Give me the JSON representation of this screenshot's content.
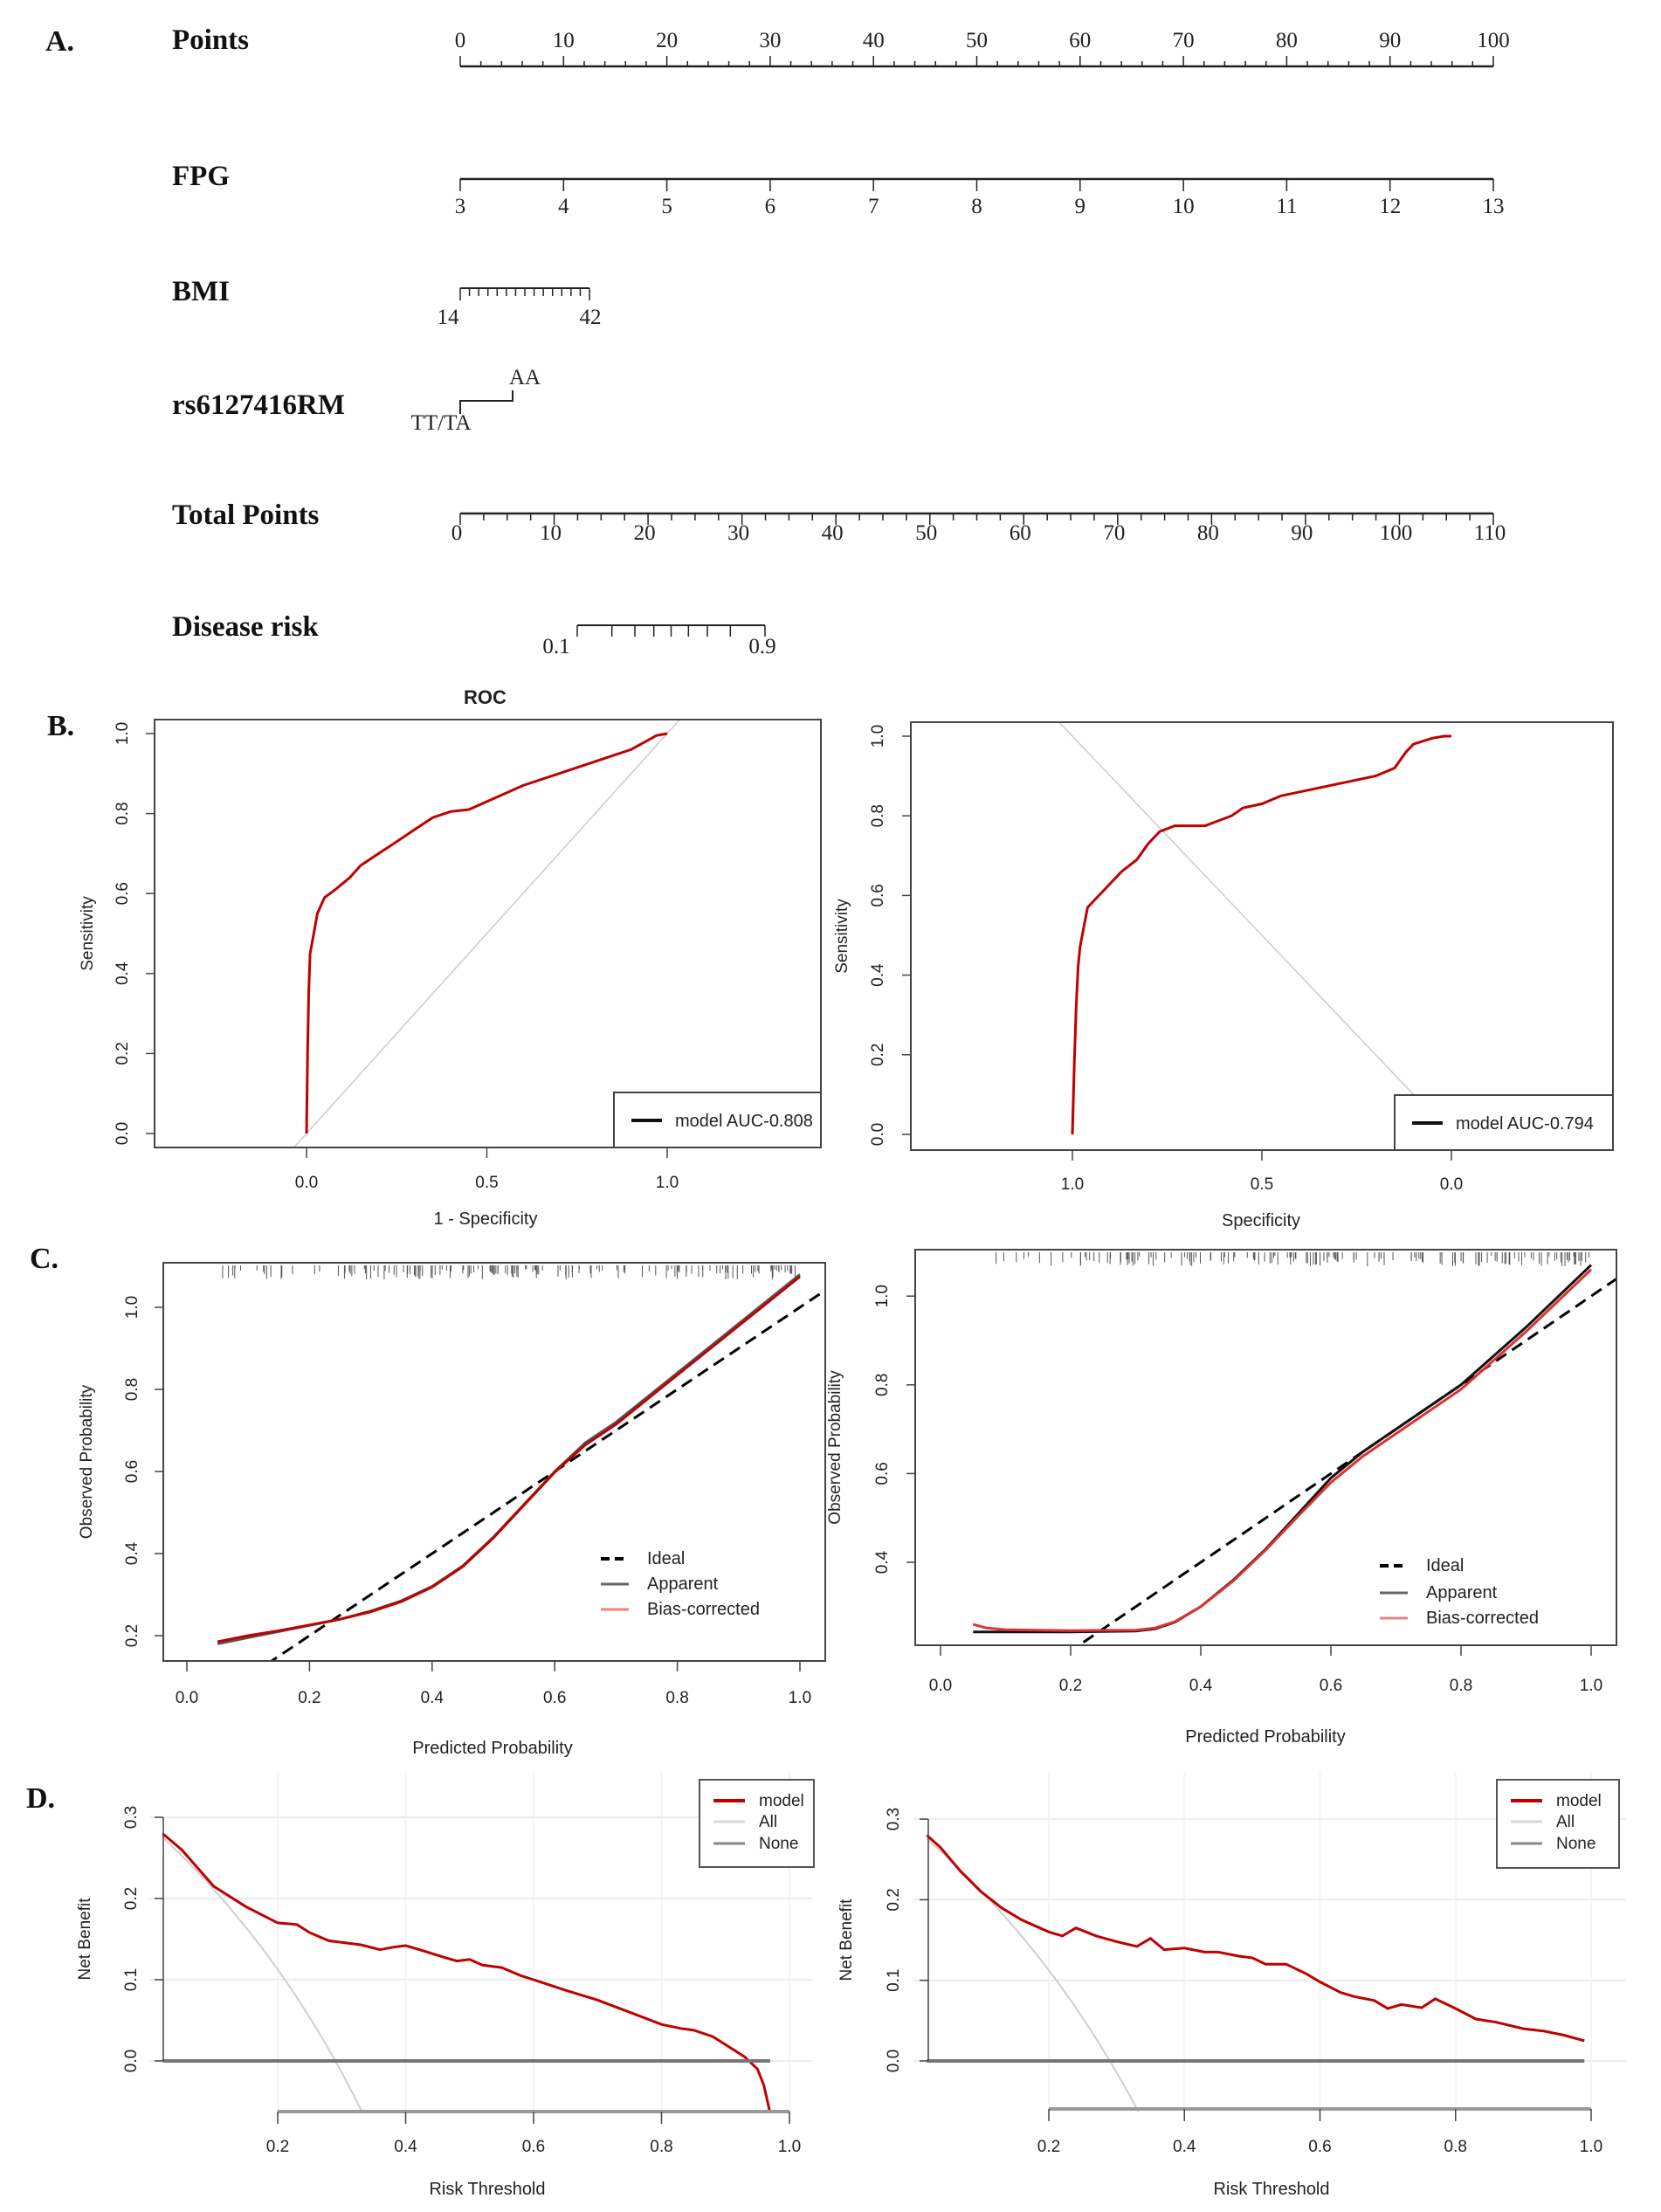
{
  "panel_labels": {
    "a": "A.",
    "b": "B.",
    "c": "C.",
    "d": "D."
  },
  "nomogram": {
    "rows": [
      {
        "label": "Points",
        "ticks": [
          0,
          10,
          20,
          30,
          40,
          50,
          60,
          70,
          80,
          90,
          100
        ]
      },
      {
        "label": "FPG",
        "ticks": [
          3,
          4,
          5,
          6,
          7,
          8,
          9,
          10,
          11,
          12,
          13
        ]
      },
      {
        "label": "BMI",
        "ticks": [
          "14",
          "42"
        ]
      },
      {
        "label": "rs6127416RM",
        "levels": [
          "TT/TA",
          "AA"
        ]
      },
      {
        "label": "Total Points",
        "ticks": [
          0,
          10,
          20,
          30,
          40,
          50,
          60,
          70,
          80,
          90,
          100,
          110
        ]
      },
      {
        "label": "Disease risk",
        "ticks": [
          "0.1",
          "0.9"
        ]
      }
    ]
  },
  "chart_data": [
    {
      "id": "roc_left",
      "type": "line",
      "title": "ROC",
      "xlabel": "1 - Specificity",
      "ylabel": "Sensitivity",
      "xticks": [
        "0.0",
        "0.5",
        "1.0"
      ],
      "yticks": [
        "0.0",
        "0.2",
        "0.4",
        "0.6",
        "0.8",
        "1.0"
      ],
      "xlim": [
        -0.42,
        1.42
      ],
      "ylim": [
        -0.04,
        1.03
      ],
      "legend": {
        "position": "bottom-right",
        "entries": [
          "model AUC-0.808"
        ]
      },
      "series": [
        {
          "name": "model",
          "color": "#c00000",
          "x": [
            0,
            0.003,
            0.006,
            0.01,
            0.02,
            0.03,
            0.05,
            0.08,
            0.12,
            0.15,
            0.2,
            0.25,
            0.3,
            0.35,
            0.4,
            0.45,
            0.5,
            0.55,
            0.6,
            0.7,
            0.8,
            0.9,
            0.97,
            1.0
          ],
          "y": [
            0,
            0.2,
            0.35,
            0.45,
            0.5,
            0.55,
            0.59,
            0.61,
            0.64,
            0.67,
            0.7,
            0.73,
            0.76,
            0.79,
            0.805,
            0.81,
            0.83,
            0.85,
            0.87,
            0.9,
            0.93,
            0.96,
            0.995,
            1.0
          ]
        }
      ],
      "reference": {
        "name": "chance",
        "color": "#cccccc"
      }
    },
    {
      "id": "roc_right",
      "type": "line",
      "title": "",
      "xlabel": "Specificity",
      "ylabel": "Sensitivity",
      "xticks": [
        "1.0",
        "0.5",
        "0.0"
      ],
      "yticks": [
        "0.0",
        "0.2",
        "0.4",
        "0.6",
        "0.8",
        "1.0"
      ],
      "xlim": [
        1.42,
        -0.43
      ],
      "ylim": [
        -0.04,
        1.03
      ],
      "legend": {
        "position": "bottom-right",
        "entries": [
          "model AUC-0.794"
        ]
      },
      "series": [
        {
          "name": "model",
          "color": "#c00000",
          "x": [
            1.0,
            0.995,
            0.99,
            0.985,
            0.98,
            0.97,
            0.96,
            0.93,
            0.9,
            0.87,
            0.83,
            0.8,
            0.77,
            0.73,
            0.65,
            0.58,
            0.55,
            0.5,
            0.45,
            0.4,
            0.3,
            0.2,
            0.15,
            0.12,
            0.1,
            0.05,
            0.02,
            0.0
          ],
          "y": [
            0,
            0.18,
            0.32,
            0.42,
            0.47,
            0.52,
            0.57,
            0.6,
            0.63,
            0.66,
            0.69,
            0.73,
            0.76,
            0.775,
            0.775,
            0.8,
            0.82,
            0.83,
            0.85,
            0.86,
            0.88,
            0.9,
            0.92,
            0.96,
            0.98,
            0.995,
            1.0,
            1.0
          ]
        }
      ],
      "reference": {
        "name": "chance",
        "color": "#cccccc"
      }
    },
    {
      "id": "calibration_left",
      "type": "line",
      "xlabel": "Predicted Probability",
      "ylabel": "Observed Probability",
      "xticks": [
        "0.0",
        "0.2",
        "0.4",
        "0.6",
        "0.8",
        "1.0"
      ],
      "yticks": [
        "0.2",
        "0.4",
        "0.6",
        "0.8",
        "1.0"
      ],
      "xlim": [
        -0.04,
        1.04
      ],
      "ylim": [
        0.14,
        1.11
      ],
      "legend": {
        "position": "bottom-right",
        "entries": [
          "Ideal",
          "Apparent",
          "Bias-corrected"
        ]
      },
      "series": [
        {
          "name": "Ideal",
          "color": "#000000",
          "style": "dashed",
          "x": [
            0,
            1.05
          ],
          "y": [
            0,
            1.05
          ]
        },
        {
          "name": "Apparent",
          "color": "#555555",
          "style": "solid",
          "x": [
            0.05,
            0.1,
            0.15,
            0.2,
            0.25,
            0.3,
            0.35,
            0.4,
            0.45,
            0.5,
            0.55,
            0.6,
            0.65,
            0.7,
            0.8,
            0.9,
            1.0
          ],
          "y": [
            0.18,
            0.195,
            0.21,
            0.225,
            0.24,
            0.26,
            0.285,
            0.32,
            0.37,
            0.44,
            0.52,
            0.6,
            0.67,
            0.72,
            0.84,
            0.96,
            1.08
          ]
        },
        {
          "name": "Bias-corrected",
          "color": "#c00000",
          "style": "solid",
          "x": [
            0.05,
            0.1,
            0.15,
            0.2,
            0.25,
            0.3,
            0.35,
            0.4,
            0.45,
            0.5,
            0.55,
            0.6,
            0.65,
            0.7,
            0.8,
            0.9,
            1.0
          ],
          "y": [
            0.185,
            0.2,
            0.212,
            0.226,
            0.24,
            0.258,
            0.283,
            0.318,
            0.368,
            0.438,
            0.518,
            0.598,
            0.665,
            0.715,
            0.835,
            0.955,
            1.075
          ]
        }
      ],
      "rug": true
    },
    {
      "id": "calibration_right",
      "type": "line",
      "xlabel": "Predicted Probability",
      "ylabel": "Observed Probability",
      "xticks": [
        "0.0",
        "0.2",
        "0.4",
        "0.6",
        "0.8",
        "1.0"
      ],
      "yticks": [
        "0.4",
        "0.6",
        "0.8",
        "1.0"
      ],
      "xlim": [
        -0.04,
        1.04
      ],
      "ylim": [
        0.215,
        1.11
      ],
      "legend": {
        "position": "bottom-right",
        "entries": [
          "Ideal",
          "Apparent",
          "Bias-corrected"
        ]
      },
      "series": [
        {
          "name": "Ideal",
          "color": "#000000",
          "style": "dashed",
          "x": [
            0,
            1.05
          ],
          "y": [
            0,
            1.05
          ]
        },
        {
          "name": "Apparent",
          "color": "#111111",
          "style": "solid",
          "x": [
            0.05,
            0.1,
            0.2,
            0.3,
            0.33,
            0.36,
            0.4,
            0.45,
            0.5,
            0.55,
            0.6,
            0.65,
            0.7,
            0.8,
            0.9,
            1.0
          ],
          "y": [
            0.243,
            0.243,
            0.243,
            0.245,
            0.25,
            0.265,
            0.3,
            0.36,
            0.43,
            0.51,
            0.59,
            0.65,
            0.7,
            0.8,
            0.93,
            1.07
          ]
        },
        {
          "name": "Bias-corrected",
          "color": "#e03030",
          "style": "solid",
          "x": [
            0.05,
            0.07,
            0.1,
            0.2,
            0.3,
            0.33,
            0.36,
            0.4,
            0.45,
            0.5,
            0.55,
            0.6,
            0.65,
            0.7,
            0.8,
            0.9,
            1.0
          ],
          "y": [
            0.26,
            0.252,
            0.248,
            0.246,
            0.247,
            0.252,
            0.266,
            0.3,
            0.358,
            0.428,
            0.505,
            0.58,
            0.64,
            0.69,
            0.79,
            0.92,
            1.06
          ]
        }
      ],
      "rug": true
    },
    {
      "id": "dca_left",
      "type": "line",
      "xlabel": "Risk Threshold",
      "ylabel": "Net Benefit",
      "xticks": [
        "0.2",
        "0.4",
        "0.6",
        "0.8",
        "1.0"
      ],
      "yticks": [
        "0.0",
        "0.1",
        "0.2",
        "0.3"
      ],
      "xlim": [
        0,
        1.03
      ],
      "ylim": [
        -0.065,
        0.33
      ],
      "legend": {
        "position": "top-right",
        "entries": [
          "model",
          "All",
          "None"
        ]
      },
      "prevalence": 0.29,
      "series": [
        {
          "name": "model",
          "color": "#c00000",
          "x": [
            0.02,
            0.05,
            0.1,
            0.15,
            0.2,
            0.23,
            0.25,
            0.28,
            0.3,
            0.33,
            0.36,
            0.38,
            0.4,
            0.43,
            0.45,
            0.48,
            0.5,
            0.52,
            0.55,
            0.58,
            0.6,
            0.65,
            0.7,
            0.75,
            0.8,
            0.83,
            0.85,
            0.88,
            0.9,
            0.93,
            0.95,
            0.96,
            0.97
          ],
          "y": [
            0.28,
            0.26,
            0.215,
            0.19,
            0.17,
            0.168,
            0.158,
            0.148,
            0.146,
            0.143,
            0.137,
            0.14,
            0.142,
            0.135,
            0.13,
            0.123,
            0.125,
            0.118,
            0.115,
            0.105,
            0.1,
            0.087,
            0.075,
            0.06,
            0.045,
            0.04,
            0.038,
            0.03,
            0.02,
            0.005,
            -0.01,
            -0.03,
            -0.065
          ]
        },
        {
          "name": "All",
          "color": "#cccccc"
        },
        {
          "name": "None",
          "color": "#777777",
          "x": [
            0.02,
            0.97
          ],
          "y": [
            0,
            0
          ]
        }
      ]
    },
    {
      "id": "dca_right",
      "type": "line",
      "xlabel": "Risk Threshold",
      "ylabel": "Net Benefit",
      "xticks": [
        "0.2",
        "0.4",
        "0.6",
        "0.8",
        "1.0"
      ],
      "yticks": [
        "0.0",
        "0.1",
        "0.2",
        "0.3"
      ],
      "xlim": [
        0,
        1.03
      ],
      "ylim": [
        -0.065,
        0.33
      ],
      "legend": {
        "position": "top-right",
        "entries": [
          "model",
          "All",
          "None"
        ]
      },
      "prevalence": 0.29,
      "series": [
        {
          "name": "model",
          "color": "#c00000",
          "x": [
            0.02,
            0.04,
            0.07,
            0.1,
            0.13,
            0.16,
            0.2,
            0.22,
            0.24,
            0.27,
            0.3,
            0.33,
            0.35,
            0.37,
            0.4,
            0.43,
            0.45,
            0.48,
            0.5,
            0.52,
            0.55,
            0.58,
            0.6,
            0.63,
            0.65,
            0.68,
            0.7,
            0.72,
            0.75,
            0.77,
            0.8,
            0.83,
            0.86,
            0.9,
            0.93,
            0.96,
            0.99
          ],
          "y": [
            0.28,
            0.265,
            0.235,
            0.21,
            0.19,
            0.175,
            0.16,
            0.155,
            0.165,
            0.155,
            0.148,
            0.142,
            0.152,
            0.138,
            0.14,
            0.135,
            0.135,
            0.13,
            0.128,
            0.12,
            0.12,
            0.108,
            0.098,
            0.085,
            0.08,
            0.075,
            0.065,
            0.07,
            0.066,
            0.077,
            0.065,
            0.052,
            0.048,
            0.04,
            0.037,
            0.032,
            0.025
          ]
        },
        {
          "name": "All",
          "color": "#cccccc"
        },
        {
          "name": "None",
          "color": "#777777",
          "x": [
            0.02,
            0.99
          ],
          "y": [
            0,
            0
          ]
        }
      ]
    }
  ]
}
